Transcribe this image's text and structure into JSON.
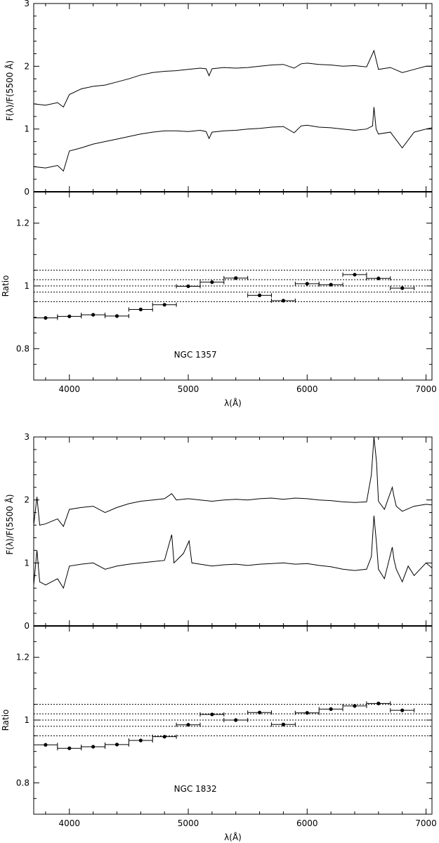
{
  "chart_data": [
    {
      "type": "line",
      "galaxy": "NGC 1357",
      "spectrum_panel": {
        "ylabel": "F(λ)/F(5500 Å)",
        "ylim": [
          0,
          3
        ],
        "yticks": [
          0,
          1,
          2,
          3
        ],
        "xlim": [
          3700,
          7050
        ],
        "series": [
          {
            "x": [
              3700,
              3800,
              3900,
              3950,
              4000,
              4100,
              4200,
              4300,
              4400,
              4500,
              4600,
              4700,
              4800,
              4900,
              5000,
              5100,
              5150,
              5175,
              5200,
              5300,
              5400,
              5500,
              5600,
              5700,
              5800,
              5890,
              5950,
              6000,
              6100,
              6200,
              6300,
              6400,
              6500,
              6562,
              6600,
              6700,
              6800,
              6900,
              7000,
              7050
            ],
            "y": [
              1.4,
              1.38,
              1.42,
              1.35,
              1.55,
              1.64,
              1.68,
              1.7,
              1.75,
              1.8,
              1.86,
              1.9,
              1.92,
              1.93,
              1.95,
              1.97,
              1.96,
              1.85,
              1.96,
              1.98,
              1.97,
              1.98,
              2.0,
              2.02,
              2.03,
              1.97,
              2.04,
              2.05,
              2.03,
              2.02,
              2.0,
              2.01,
              1.99,
              2.25,
              1.95,
              1.98,
              1.9,
              1.95,
              2.0,
              2.0
            ]
          },
          {
            "x": [
              3700,
              3800,
              3900,
              3950,
              4000,
              4100,
              4200,
              4300,
              4400,
              4500,
              4600,
              4700,
              4800,
              4900,
              5000,
              5100,
              5150,
              5175,
              5200,
              5300,
              5400,
              5500,
              5600,
              5700,
              5800,
              5890,
              5950,
              6000,
              6100,
              6200,
              6300,
              6400,
              6500,
              6550,
              6562,
              6580,
              6600,
              6700,
              6800,
              6900,
              7000,
              7050
            ],
            "y": [
              0.4,
              0.38,
              0.42,
              0.33,
              0.65,
              0.7,
              0.76,
              0.8,
              0.84,
              0.88,
              0.92,
              0.95,
              0.97,
              0.97,
              0.96,
              0.98,
              0.96,
              0.85,
              0.95,
              0.97,
              0.98,
              1.0,
              1.01,
              1.03,
              1.04,
              0.94,
              1.05,
              1.06,
              1.03,
              1.02,
              1.0,
              0.98,
              1.0,
              1.05,
              1.35,
              1.0,
              0.92,
              0.95,
              0.7,
              0.95,
              1.0,
              1.02
            ]
          }
        ]
      },
      "ratio_panel": {
        "ylabel": "Ratio",
        "xlabel": "λ(Å)",
        "ylim": [
          0.7,
          1.3
        ],
        "yticks": [
          0.8,
          1,
          1.2
        ],
        "ytick_labels": [
          "0.8",
          "1",
          "1.2"
        ],
        "xlim": [
          3700,
          7050
        ],
        "xticks": [
          4000,
          5000,
          6000,
          7000
        ],
        "xtick_labels": [
          "4000",
          "5000",
          "6000",
          "7000"
        ],
        "reference_lines": [
          0.95,
          0.98,
          1.0,
          1.02,
          1.05
        ],
        "label": "NGC 1357",
        "points": [
          {
            "x": 3800,
            "y": 0.898
          },
          {
            "x": 4000,
            "y": 0.903
          },
          {
            "x": 4200,
            "y": 0.908
          },
          {
            "x": 4400,
            "y": 0.904
          },
          {
            "x": 4600,
            "y": 0.925
          },
          {
            "x": 4800,
            "y": 0.94
          },
          {
            "x": 5000,
            "y": 0.999
          },
          {
            "x": 5200,
            "y": 1.012
          },
          {
            "x": 5400,
            "y": 1.025
          },
          {
            "x": 5600,
            "y": 0.97
          },
          {
            "x": 5800,
            "y": 0.953
          },
          {
            "x": 6000,
            "y": 1.007
          },
          {
            "x": 6200,
            "y": 1.004
          },
          {
            "x": 6400,
            "y": 1.036
          },
          {
            "x": 6600,
            "y": 1.024
          },
          {
            "x": 6800,
            "y": 0.993
          }
        ],
        "bin_halfwidth": 100
      }
    },
    {
      "type": "line",
      "galaxy": "NGC 1832",
      "spectrum_panel": {
        "ylabel": "F(λ)/F(5500 Å)",
        "ylim": [
          0,
          3
        ],
        "yticks": [
          0,
          1,
          2,
          3
        ],
        "xlim": [
          3700,
          7050
        ],
        "series": [
          {
            "x": [
              3700,
              3727,
              3750,
              3800,
              3900,
              3950,
              4000,
              4100,
              4200,
              4300,
              4400,
              4500,
              4600,
              4700,
              4800,
              4861,
              4900,
              5000,
              5100,
              5200,
              5300,
              5400,
              5500,
              5600,
              5700,
              5800,
              5900,
              6000,
              6100,
              6200,
              6300,
              6400,
              6500,
              6540,
              6562,
              6584,
              6600,
              6650,
              6716,
              6731,
              6750,
              6800,
              6900,
              7000,
              7050
            ],
            "y": [
              1.6,
              2.05,
              1.6,
              1.62,
              1.7,
              1.58,
              1.85,
              1.88,
              1.9,
              1.8,
              1.88,
              1.94,
              1.98,
              2.0,
              2.02,
              2.1,
              2.0,
              2.02,
              2.0,
              1.98,
              2.0,
              2.01,
              2.0,
              2.02,
              2.03,
              2.01,
              2.03,
              2.02,
              2.0,
              1.99,
              1.97,
              1.96,
              1.97,
              2.4,
              3.0,
              2.6,
              1.98,
              1.85,
              2.2,
              2.05,
              1.9,
              1.82,
              1.9,
              1.93,
              1.92
            ]
          },
          {
            "x": [
              3700,
              3727,
              3750,
              3800,
              3900,
              3950,
              4000,
              4100,
              4200,
              4300,
              4400,
              4500,
              4600,
              4700,
              4800,
              4861,
              4880,
              4959,
              5007,
              5030,
              5100,
              5200,
              5300,
              5400,
              5500,
              5600,
              5700,
              5800,
              5900,
              6000,
              6100,
              6200,
              6300,
              6400,
              6500,
              6540,
              6562,
              6584,
              6600,
              6650,
              6716,
              6731,
              6750,
              6800,
              6850,
              6900,
              7000,
              7050
            ],
            "y": [
              0.65,
              1.2,
              0.7,
              0.65,
              0.75,
              0.6,
              0.95,
              0.98,
              1.0,
              0.9,
              0.95,
              0.98,
              1.0,
              1.02,
              1.04,
              1.45,
              1.0,
              1.15,
              1.35,
              1.0,
              0.98,
              0.95,
              0.97,
              0.98,
              0.96,
              0.98,
              0.99,
              1.0,
              0.98,
              0.99,
              0.96,
              0.94,
              0.9,
              0.88,
              0.9,
              1.1,
              1.75,
              1.3,
              0.9,
              0.75,
              1.25,
              1.05,
              0.9,
              0.7,
              0.95,
              0.8,
              1.0,
              0.92
            ]
          }
        ]
      },
      "ratio_panel": {
        "ylabel": "Ratio",
        "xlabel": "λ(Å)",
        "ylim": [
          0.7,
          1.3
        ],
        "yticks": [
          0.8,
          1,
          1.2
        ],
        "ytick_labels": [
          "0.8",
          "1",
          "1.2"
        ],
        "xlim": [
          3700,
          7050
        ],
        "xticks": [
          4000,
          5000,
          6000,
          7000
        ],
        "xtick_labels": [
          "4000",
          "5000",
          "6000",
          "7000"
        ],
        "reference_lines": [
          0.95,
          0.98,
          1.0,
          1.02,
          1.05
        ],
        "label": "NGC 1832",
        "points": [
          {
            "x": 3800,
            "y": 0.921
          },
          {
            "x": 4000,
            "y": 0.91
          },
          {
            "x": 4200,
            "y": 0.915
          },
          {
            "x": 4400,
            "y": 0.922
          },
          {
            "x": 4600,
            "y": 0.935
          },
          {
            "x": 4800,
            "y": 0.947
          },
          {
            "x": 5000,
            "y": 0.985
          },
          {
            "x": 5200,
            "y": 1.018
          },
          {
            "x": 5400,
            "y": 1.0
          },
          {
            "x": 5600,
            "y": 1.024
          },
          {
            "x": 5800,
            "y": 0.986
          },
          {
            "x": 6000,
            "y": 1.023
          },
          {
            "x": 6200,
            "y": 1.035
          },
          {
            "x": 6400,
            "y": 1.045
          },
          {
            "x": 6600,
            "y": 1.053
          },
          {
            "x": 6800,
            "y": 1.031
          }
        ],
        "bin_halfwidth": 100
      }
    }
  ]
}
